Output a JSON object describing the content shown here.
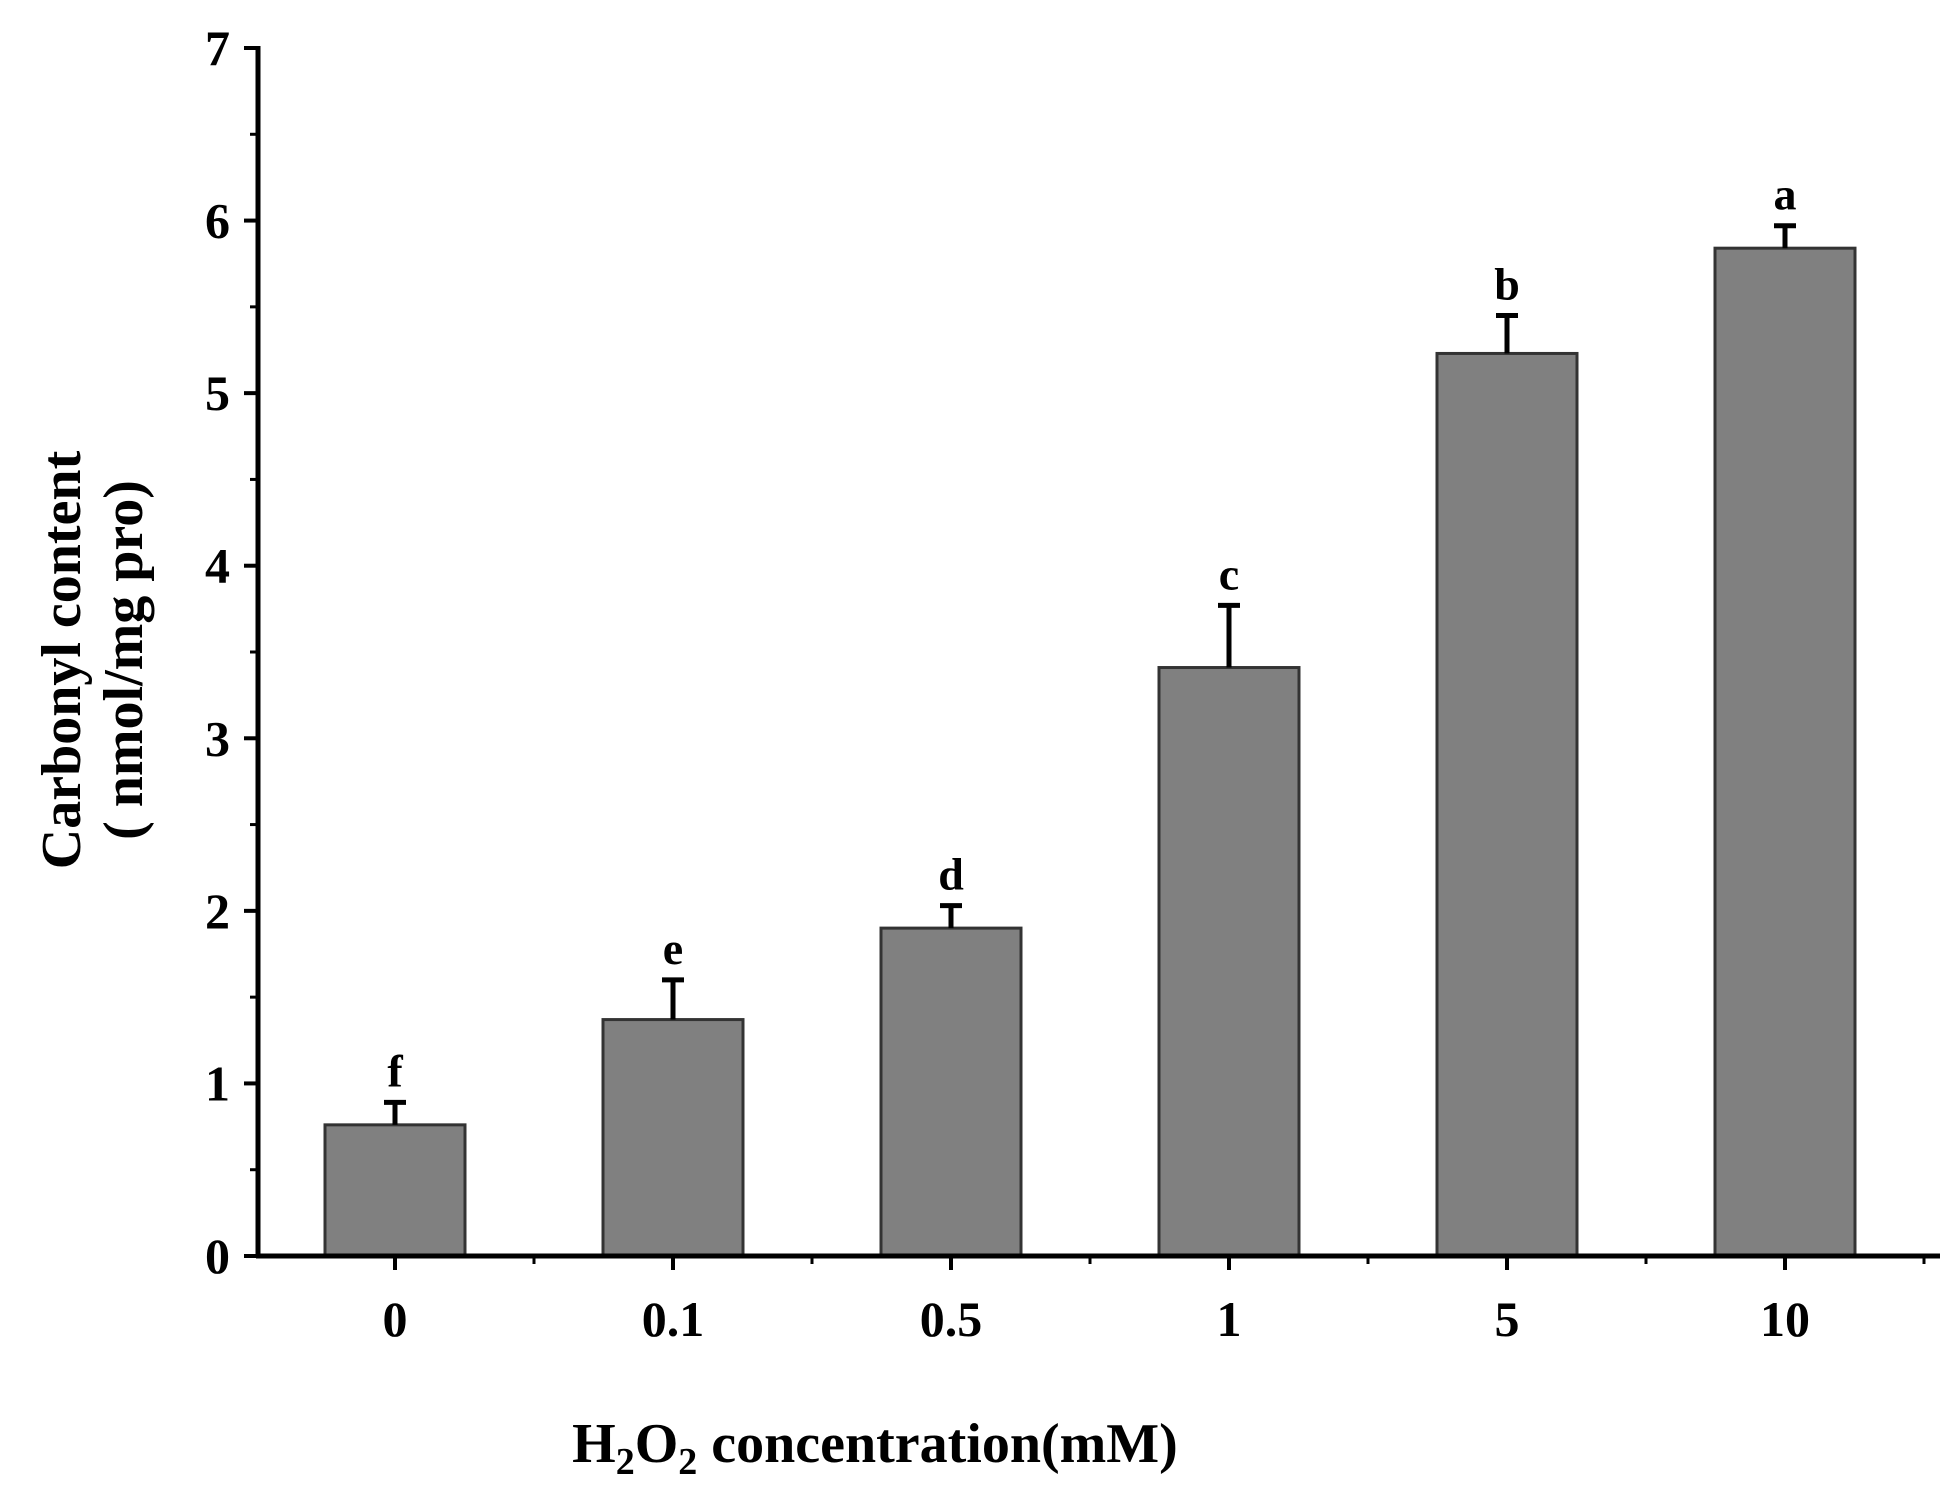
{
  "chart_data": {
    "type": "bar",
    "categories": [
      "0",
      "0.1",
      "0.5",
      "1",
      "5",
      "10"
    ],
    "values": [
      0.76,
      1.37,
      1.9,
      3.41,
      5.23,
      5.84
    ],
    "errors": [
      0.13,
      0.23,
      0.13,
      0.36,
      0.22,
      0.13
    ],
    "significance": [
      "f",
      "e",
      "d",
      "c",
      "b",
      "a"
    ],
    "xlabel": {
      "prefix": "H",
      "sub1": "2",
      "mid": "O",
      "sub2": "2",
      "suffix": " concentration(mM)"
    },
    "ylabel": {
      "line1": "Carbonyl content",
      "line2": "( nmol/mg pro)"
    },
    "yticks": [
      "0",
      "1",
      "2",
      "3",
      "4",
      "5",
      "6",
      "7"
    ],
    "ylim": [
      0,
      7
    ],
    "bar_color": "#808080",
    "bar_edge_color": "#333333",
    "grid": false,
    "legend": "none"
  }
}
